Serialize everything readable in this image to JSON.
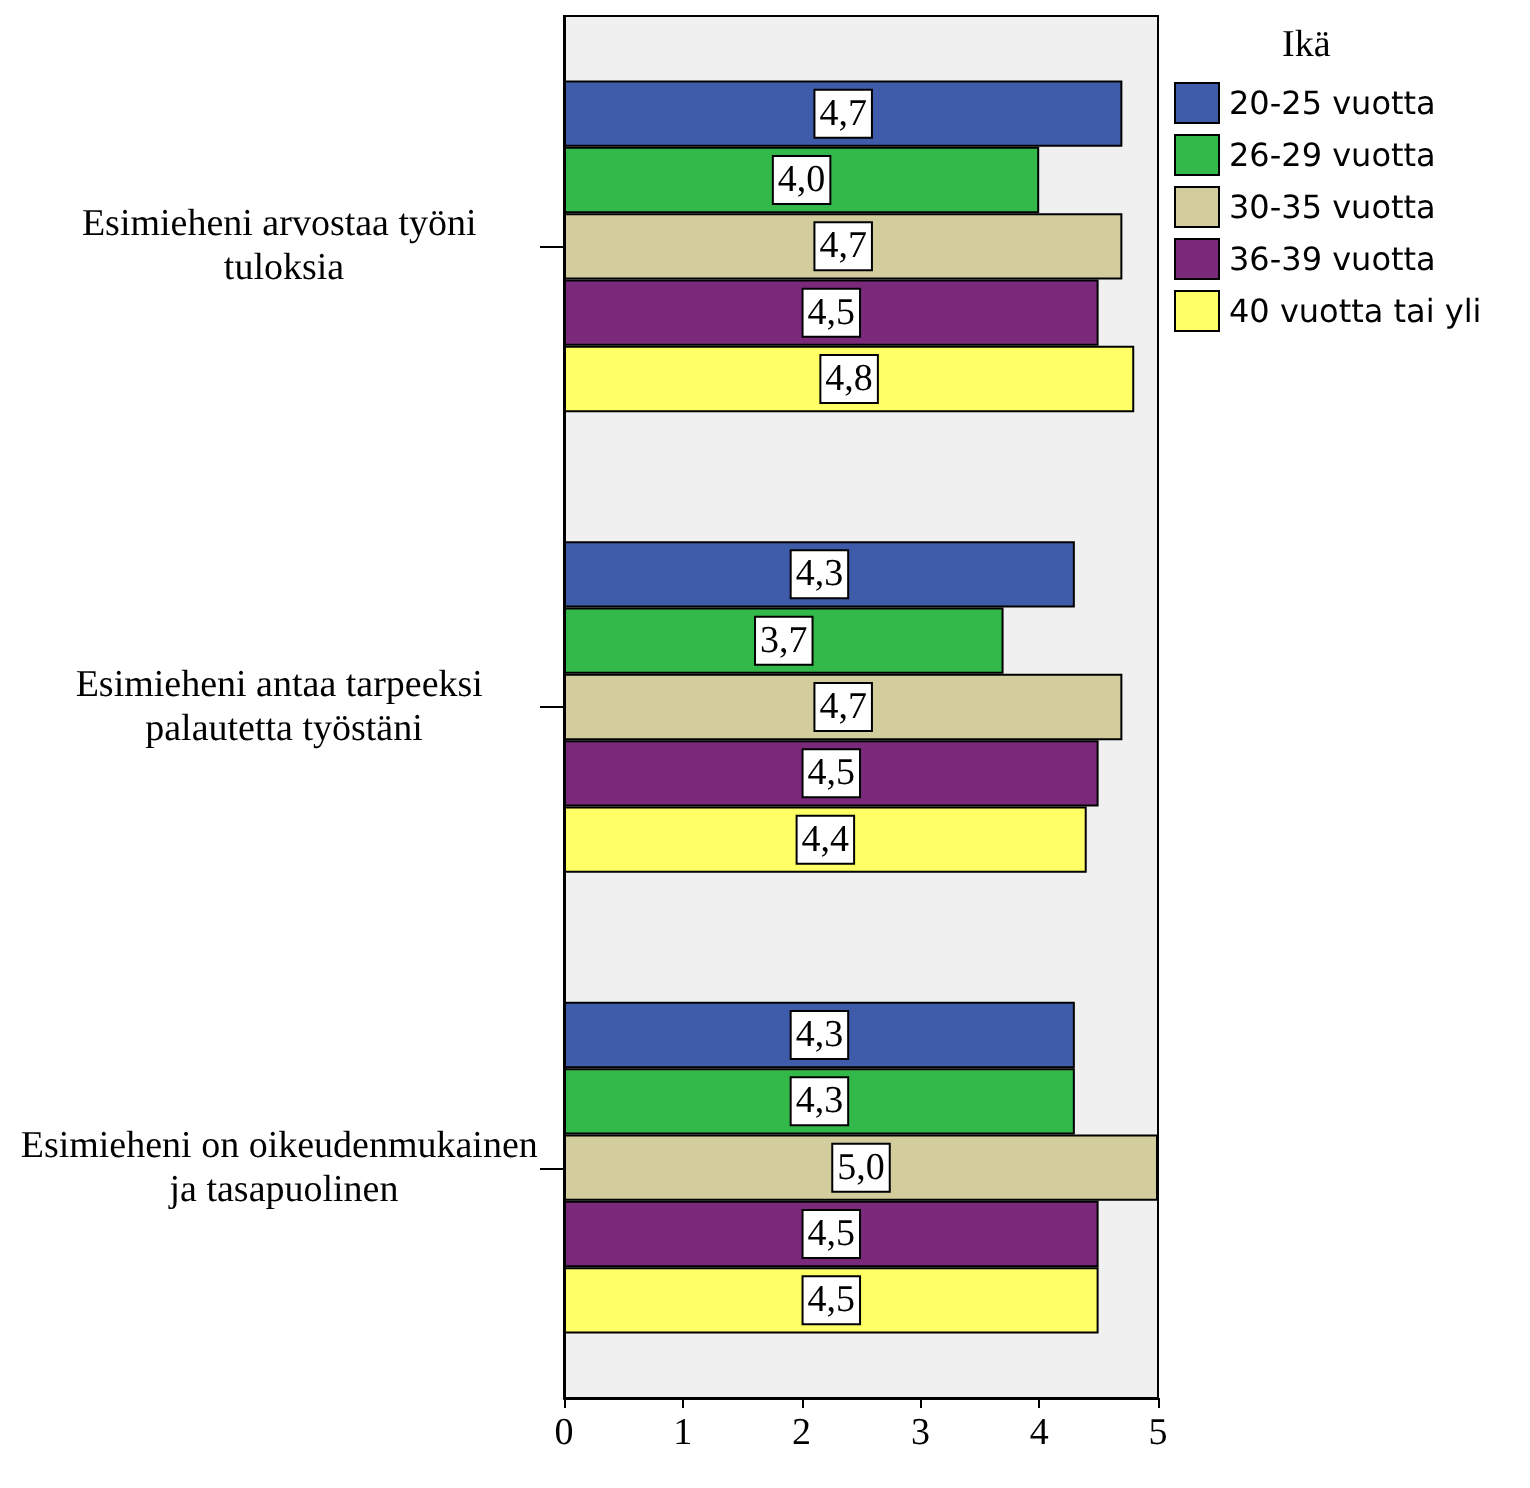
{
  "chart_data": {
    "type": "bar",
    "orientation": "horizontal",
    "legend_title": "Ikä",
    "legend": "top right",
    "grid": false,
    "categories": [
      "Esimieheni arvostaa työni tuloksia",
      "Esimieheni antaa tarpeeksi palautetta työstäni",
      "Esimieheni on oikeudenmukainen ja tasapuolinen"
    ],
    "series": [
      {
        "name": "20-25 vuotta",
        "color": "#3f5cab",
        "values": [
          4.7,
          4.3,
          4.3
        ],
        "value_labels": [
          "4,7",
          "4,3",
          "4,3"
        ]
      },
      {
        "name": "26-29 vuotta",
        "color": "#33b84a",
        "values": [
          4.0,
          3.7,
          4.3
        ],
        "value_labels": [
          "4,0",
          "3,7",
          "4,3"
        ]
      },
      {
        "name": "30-35 vuotta",
        "color": "#d3cc9c",
        "values": [
          4.7,
          4.7,
          5.0
        ],
        "value_labels": [
          "4,7",
          "4,7",
          "5,0"
        ]
      },
      {
        "name": "36-39 vuotta",
        "color": "#7b2a7b",
        "values": [
          4.5,
          4.5,
          4.5
        ],
        "value_labels": [
          "4,5",
          "4,5",
          "4,5"
        ]
      },
      {
        "name": "40 vuotta tai yli",
        "color": "#ffff66",
        "values": [
          4.8,
          4.4,
          4.5
        ],
        "value_labels": [
          "4,8",
          "4,4",
          "4,5"
        ]
      }
    ],
    "xlim": [
      0,
      5
    ],
    "xticks": [
      0,
      1,
      2,
      3,
      4,
      5
    ]
  }
}
